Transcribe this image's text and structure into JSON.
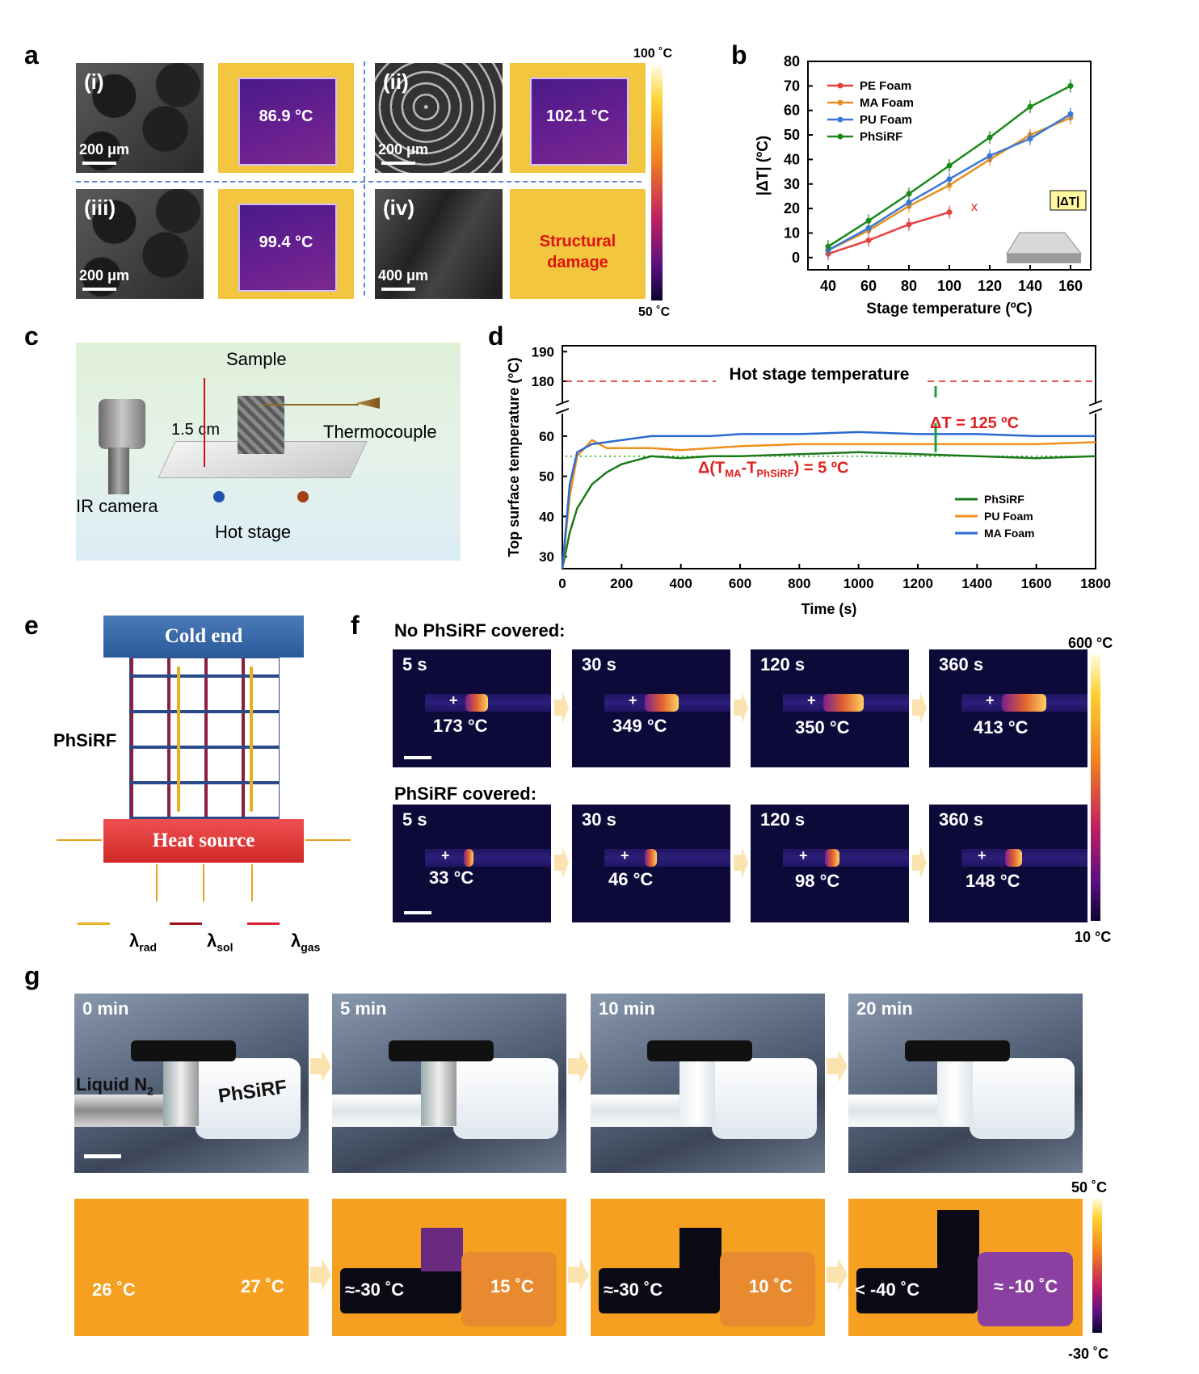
{
  "panels": {
    "a": "a",
    "b": "b",
    "c": "c",
    "d": "d",
    "e": "e",
    "f": "f",
    "g": "g"
  },
  "panel_a": {
    "sem": [
      {
        "tag": "(i)",
        "scale": "200 μm"
      },
      {
        "tag": "(ii)",
        "scale": "200 μm"
      },
      {
        "tag": "(iii)",
        "scale": "200 μm"
      },
      {
        "tag": "(iv)",
        "scale": "400 μm"
      }
    ],
    "ir": [
      "86.9 °C",
      "102.1 °C",
      "99.4 °C"
    ],
    "damage_line1": "Structural",
    "damage_line2": "damage",
    "cbar_top": "100 ˚C",
    "cbar_bottom": "50 ˚C"
  },
  "chart_data": [
    {
      "type": "line",
      "xlabel": "Stage temperature (ºC)",
      "ylabel": "|ΔT| (ºC)",
      "xlim": [
        30,
        170
      ],
      "ylim": [
        -5,
        80
      ],
      "xticks": [
        40,
        60,
        80,
        100,
        120,
        140,
        160
      ],
      "yticks": [
        0,
        10,
        20,
        30,
        40,
        50,
        60,
        70,
        80
      ],
      "series": [
        {
          "name": "PE Foam",
          "color": "#e84040",
          "x": [
            40,
            60,
            80,
            100
          ],
          "values": [
            1.5,
            7,
            13.5,
            18.5
          ]
        },
        {
          "name": "MA Foam",
          "color": "#e89020",
          "x": [
            40,
            60,
            80,
            100,
            120,
            140,
            160
          ],
          "values": [
            3,
            11,
            21,
            29.5,
            40,
            50,
            57
          ]
        },
        {
          "name": "PU Foam",
          "color": "#3a78d8",
          "x": [
            40,
            60,
            80,
            100,
            120,
            140,
            160
          ],
          "values": [
            3,
            12,
            22.5,
            32,
            41.5,
            48.5,
            58.5
          ]
        },
        {
          "name": "PhSiRF",
          "color": "#1a8a1a",
          "x": [
            40,
            60,
            80,
            100,
            120,
            140,
            160
          ],
          "values": [
            4.5,
            15,
            26,
            37.5,
            49,
            61.5,
            70
          ]
        }
      ],
      "marker": "x",
      "inset_label": "|ΔT|",
      "legend": "top-left"
    },
    {
      "type": "line",
      "xlabel": "Time (s)",
      "ylabel": "Top surface temperature (°C)",
      "xlim": [
        0,
        1800
      ],
      "xticks": [
        0,
        200,
        400,
        600,
        800,
        1000,
        1200,
        1400,
        1600,
        1800
      ],
      "yticks_low": [
        30,
        40,
        50,
        60
      ],
      "yticks_high": [
        180,
        190
      ],
      "hot_stage_value": 180,
      "reference_line": 55,
      "series": [
        {
          "name": "PhSiRF",
          "color": "#1a7a1a",
          "x": [
            0,
            25,
            50,
            100,
            150,
            200,
            300,
            400,
            500,
            600,
            800,
            1000,
            1200,
            1400,
            1600,
            1800
          ],
          "values": [
            27,
            36,
            42,
            48,
            51,
            53,
            55,
            54.5,
            55,
            55,
            55.5,
            56,
            55.5,
            55,
            54.5,
            55
          ]
        },
        {
          "name": "PU Foam",
          "color": "#f0901a",
          "x": [
            0,
            25,
            50,
            100,
            150,
            200,
            300,
            400,
            500,
            600,
            800,
            1000,
            1200,
            1400,
            1600,
            1800
          ],
          "values": [
            27,
            45,
            55,
            59,
            57,
            57,
            57,
            56.5,
            57,
            57.5,
            58,
            58,
            58,
            58,
            58,
            58.5
          ]
        },
        {
          "name": "MA Foam",
          "color": "#2a6ad0",
          "x": [
            0,
            25,
            50,
            100,
            150,
            200,
            300,
            400,
            500,
            600,
            800,
            1000,
            1200,
            1400,
            1600,
            1800
          ],
          "values": [
            27,
            48,
            56,
            58,
            58.5,
            59,
            60,
            60,
            60,
            60.5,
            60.5,
            61,
            60.5,
            60.5,
            60,
            60
          ]
        }
      ],
      "annotations": {
        "hot_stage": "Hot stage temperature",
        "delta_t": "ΔT = 125 ºC",
        "delta_ma_pre": "Δ(T",
        "delta_ma_sub1": "MA",
        "delta_ma_mid": "-T",
        "delta_ma_sub2": "PhSiRF",
        "delta_ma_post": ") = 5 ºC"
      },
      "legend": "bottom-right"
    }
  ],
  "panel_c": {
    "sample": "Sample",
    "thermocouple": "Thermocouple",
    "distance": "1.5 cm",
    "camera": "IR camera",
    "stage": "Hot stage"
  },
  "panel_e": {
    "cold": "Cold end",
    "heat": "Heat source",
    "foam": "PhSiRF",
    "rad": "λ",
    "rad_sub": "rad",
    "sol": "λ",
    "sol_sub": "sol",
    "gas": "λ",
    "gas_sub": "gas"
  },
  "panel_f": {
    "row1_title": "No PhSiRF covered:",
    "row2_title": "PhSiRF covered:",
    "row1": [
      {
        "time": "5 s",
        "temp": "173 °C"
      },
      {
        "time": "30 s",
        "temp": "349 °C"
      },
      {
        "time": "120 s",
        "temp": "350 °C"
      },
      {
        "time": "360 s",
        "temp": "413 °C"
      }
    ],
    "row2": [
      {
        "time": "5 s",
        "temp": "33 °C"
      },
      {
        "time": "30 s",
        "temp": "46 °C"
      },
      {
        "time": "120 s",
        "temp": "98 °C"
      },
      {
        "time": "360 s",
        "temp": "148 °C"
      }
    ],
    "cbar_top": "600 °C",
    "cbar_bottom": "10 °C",
    "plus": "+"
  },
  "panel_g": {
    "times": [
      "0 min",
      "5 min",
      "10 min",
      "20 min"
    ],
    "liquid": "Liquid N",
    "liquid_sub": "2",
    "foam": "PhSiRF",
    "ir_pairs": [
      [
        "26 ˚C",
        "27 ˚C"
      ],
      [
        "≈-30 ˚C",
        "15 ˚C"
      ],
      [
        "≈-30 ˚C",
        "10 ˚C"
      ],
      [
        "< -40 ˚C",
        "≈ -10 ˚C"
      ]
    ],
    "cbar_top": "50 ˚C",
    "cbar_bottom": "-30 ˚C"
  }
}
